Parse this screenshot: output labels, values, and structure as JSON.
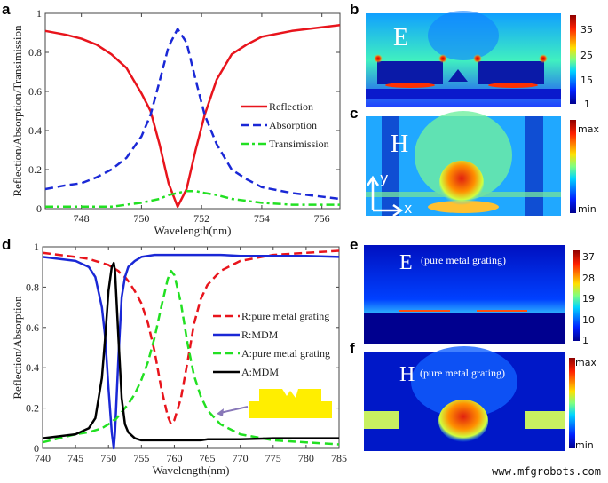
{
  "panel_labels": {
    "a": "a",
    "b": "b",
    "c": "c",
    "d": "d",
    "e": "e",
    "f": "f"
  },
  "watermark": "www.mfgrobots.com",
  "chart_data": [
    {
      "id": "a",
      "type": "line",
      "xlabel": "Wavelength(nm)",
      "ylabel": "Reflection/Absorption/Transimission",
      "xlim": [
        746.8,
        756.6
      ],
      "ylim": [
        0,
        1
      ],
      "xticks": [
        748,
        750,
        752,
        754,
        756
      ],
      "yticks": [
        0,
        0.2,
        0.4,
        0.6,
        0.8,
        1
      ],
      "ytick_labels": [
        "0",
        "0.2",
        "0.4",
        "0.6",
        "0.8",
        "1"
      ],
      "legend_position": "center-right",
      "x": [
        746.8,
        747.5,
        748,
        748.5,
        749,
        749.5,
        750,
        750.3,
        750.6,
        750.9,
        751.2,
        751.5,
        751.8,
        752.1,
        752.5,
        753,
        753.5,
        754,
        755,
        756.6
      ],
      "series": [
        {
          "name": "Reflection",
          "color": "#e8141c",
          "style": "solid",
          "values": [
            0.91,
            0.89,
            0.87,
            0.84,
            0.79,
            0.72,
            0.59,
            0.5,
            0.33,
            0.13,
            0.01,
            0.1,
            0.3,
            0.48,
            0.66,
            0.79,
            0.84,
            0.88,
            0.91,
            0.94
          ]
        },
        {
          "name": "Absorption",
          "color": "#1a28d6",
          "style": "dash",
          "values": [
            0.1,
            0.12,
            0.13,
            0.16,
            0.2,
            0.26,
            0.37,
            0.48,
            0.65,
            0.83,
            0.92,
            0.85,
            0.66,
            0.48,
            0.33,
            0.2,
            0.15,
            0.11,
            0.08,
            0.05
          ]
        },
        {
          "name": "Transimission",
          "color": "#22e022",
          "style": "dashdot",
          "values": [
            0.01,
            0.01,
            0.01,
            0.01,
            0.01,
            0.02,
            0.03,
            0.04,
            0.05,
            0.07,
            0.08,
            0.09,
            0.09,
            0.08,
            0.07,
            0.05,
            0.04,
            0.03,
            0.02,
            0.02
          ]
        }
      ]
    },
    {
      "id": "d",
      "type": "line",
      "xlabel": "Wavelength(nm)",
      "ylabel": "Reflection/Absorption",
      "xlim": [
        740,
        785
      ],
      "ylim": [
        0,
        1
      ],
      "xticks": [
        740,
        745,
        750,
        755,
        760,
        765,
        770,
        775,
        780,
        785
      ],
      "yticks": [
        0,
        0.2,
        0.4,
        0.6,
        0.8,
        1
      ],
      "ytick_labels": [
        "0",
        "0.2",
        "0.4",
        "0.6",
        "0.8",
        "1"
      ],
      "legend_position": "center-right",
      "x": [
        740,
        745,
        747,
        748,
        749,
        749.5,
        750,
        750.5,
        750.8,
        751,
        751.5,
        752,
        752.5,
        753,
        754,
        755,
        756,
        757,
        758,
        759,
        759.5,
        760,
        761,
        762,
        763,
        764,
        765,
        767,
        770,
        775,
        780,
        785
      ],
      "series": [
        {
          "name": "R:pure metal grating",
          "color": "#e8141c",
          "style": "dash",
          "values": [
            0.97,
            0.95,
            0.94,
            0.93,
            0.92,
            0.915,
            0.91,
            0.9,
            0.9,
            0.89,
            0.88,
            0.86,
            0.85,
            0.83,
            0.78,
            0.72,
            0.62,
            0.48,
            0.3,
            0.16,
            0.12,
            0.14,
            0.25,
            0.43,
            0.62,
            0.74,
            0.81,
            0.88,
            0.93,
            0.96,
            0.97,
            0.98
          ]
        },
        {
          "name": "R:MDM",
          "color": "#1a28d6",
          "style": "solid",
          "values": [
            0.95,
            0.93,
            0.9,
            0.85,
            0.7,
            0.55,
            0.3,
            0.08,
            0.0,
            0.08,
            0.45,
            0.75,
            0.85,
            0.9,
            0.93,
            0.95,
            0.955,
            0.96,
            0.96,
            0.96,
            0.96,
            0.96,
            0.96,
            0.96,
            0.96,
            0.96,
            0.96,
            0.96,
            0.955,
            0.955,
            0.955,
            0.95
          ]
        },
        {
          "name": "A:pure metal grating",
          "color": "#22e022",
          "style": "dash",
          "values": [
            0.03,
            0.07,
            0.08,
            0.09,
            0.1,
            0.11,
            0.12,
            0.13,
            0.14,
            0.14,
            0.16,
            0.18,
            0.2,
            0.22,
            0.27,
            0.34,
            0.43,
            0.55,
            0.7,
            0.84,
            0.88,
            0.86,
            0.72,
            0.52,
            0.36,
            0.26,
            0.19,
            0.12,
            0.07,
            0.04,
            0.03,
            0.02
          ]
        },
        {
          "name": "A:MDM",
          "color": "#000000",
          "style": "solid",
          "values": [
            0.05,
            0.07,
            0.1,
            0.15,
            0.35,
            0.55,
            0.78,
            0.9,
            0.92,
            0.88,
            0.55,
            0.25,
            0.12,
            0.08,
            0.05,
            0.04,
            0.04,
            0.04,
            0.04,
            0.04,
            0.04,
            0.04,
            0.04,
            0.04,
            0.04,
            0.04,
            0.045,
            0.045,
            0.045,
            0.05,
            0.05,
            0.05
          ]
        }
      ]
    }
  ],
  "fields": {
    "b": {
      "label": "E",
      "colorbar": [
        "35",
        "25",
        "15",
        "1"
      ]
    },
    "c": {
      "label": "H",
      "colorbar": [
        "max",
        "min"
      ],
      "axis_y": "y",
      "axis_x": "x"
    },
    "e": {
      "label": "E",
      "note": "(pure metal grating)",
      "colorbar": [
        "37",
        "28",
        "19",
        "10",
        "1"
      ]
    },
    "f": {
      "label": "H",
      "note": "(pure metal grating)",
      "colorbar": [
        "max",
        "min"
      ]
    }
  }
}
